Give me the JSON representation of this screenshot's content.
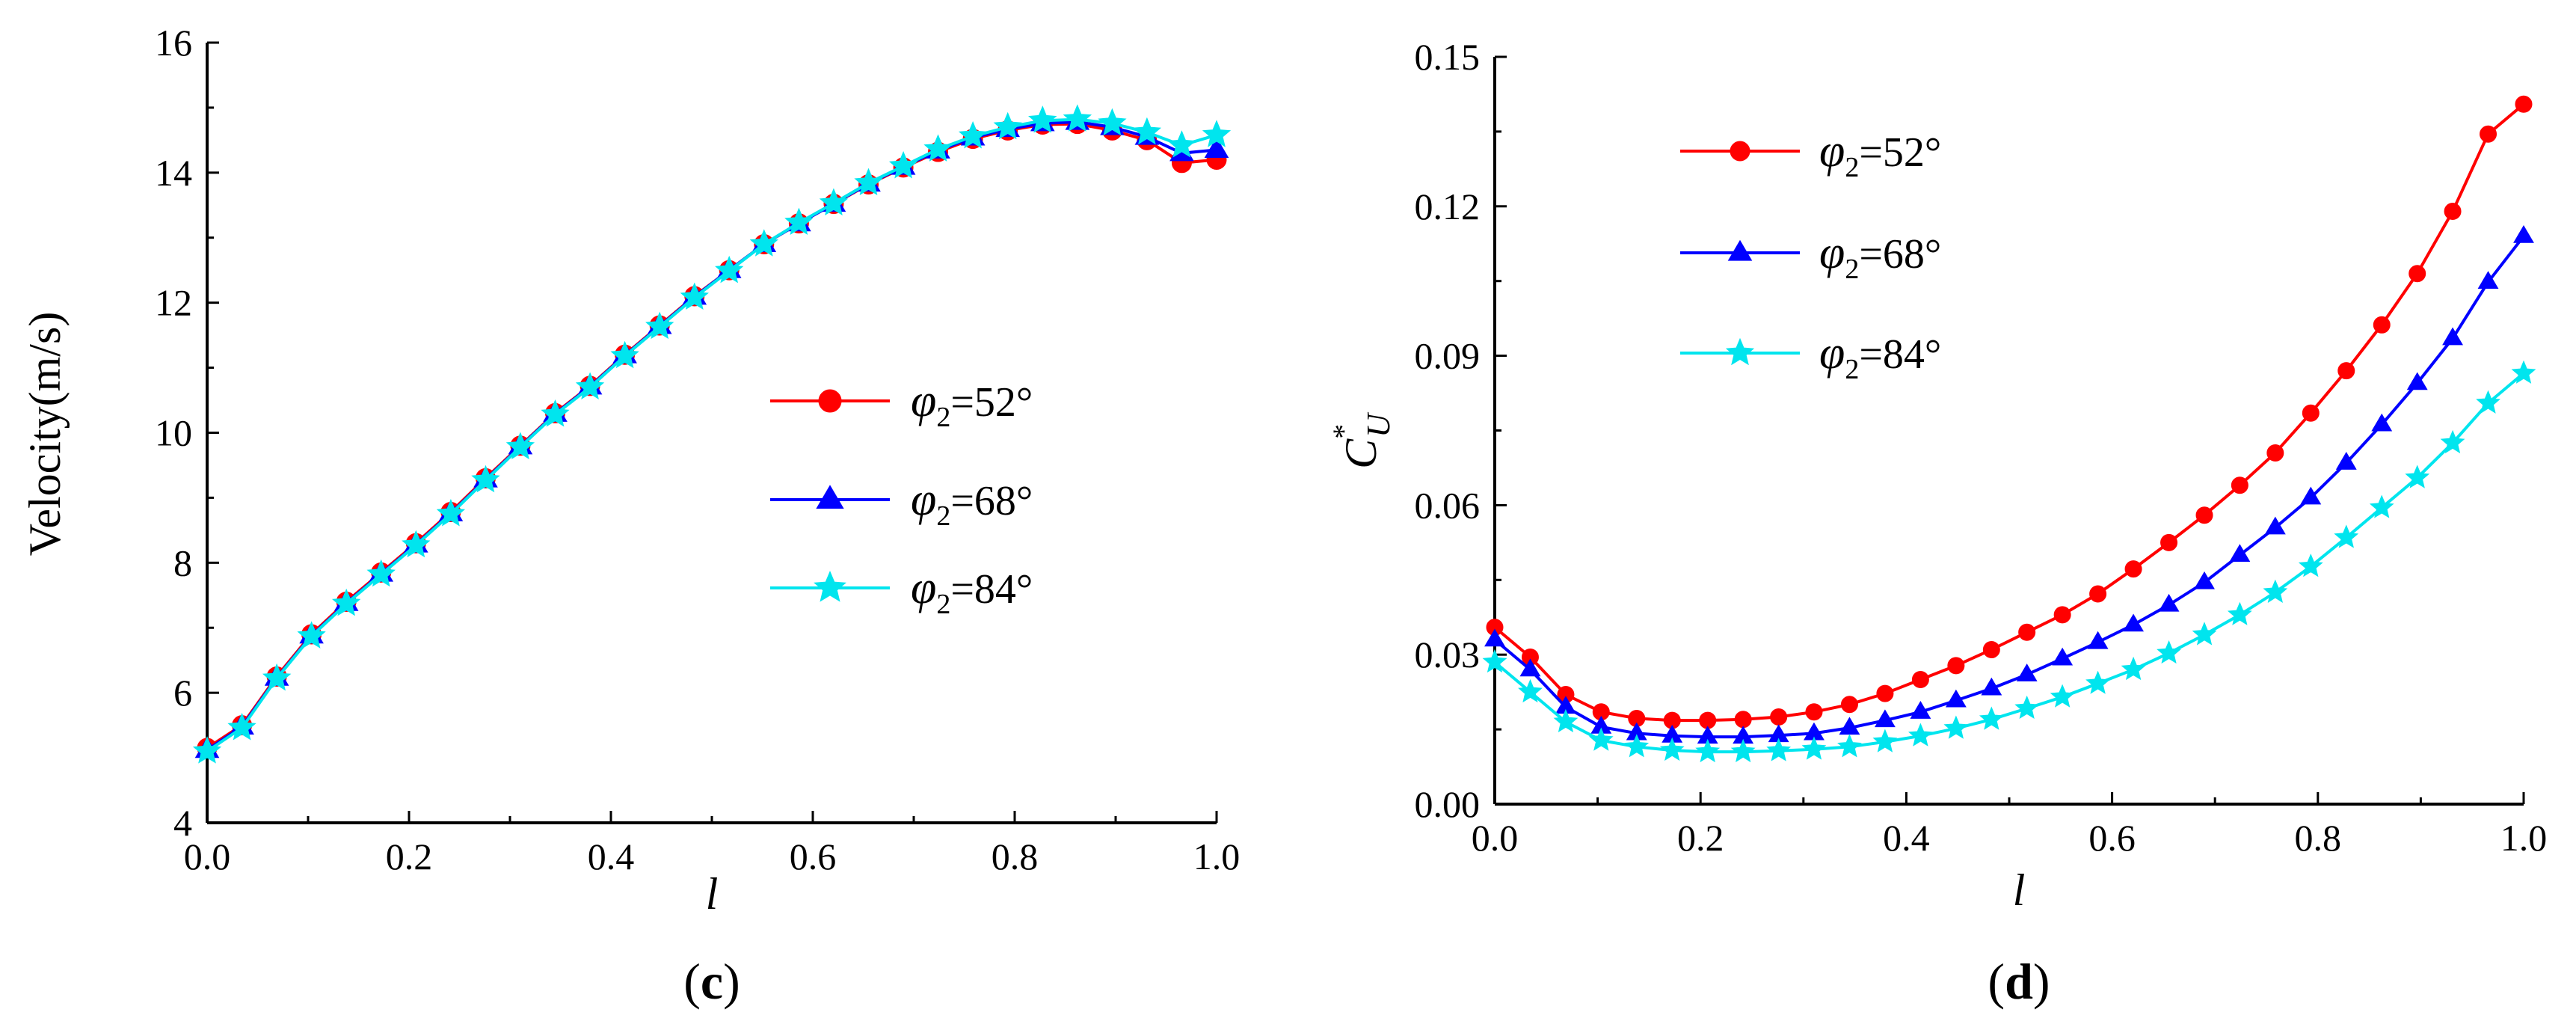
{
  "charts": [
    {
      "id": "c",
      "panel_label": {
        "open": "(",
        "letter": "c",
        "close": ")"
      },
      "chart_data": {
        "type": "line",
        "title": "",
        "xlabel": "l",
        "ylabel": "Velocity(m/s)",
        "xlim": [
          0.0,
          1.0
        ],
        "ylim": [
          4,
          16
        ],
        "xticks": [
          0.0,
          0.2,
          0.4,
          0.6,
          0.8,
          1.0
        ],
        "xtick_labels": [
          "0.0",
          "0.2",
          "0.4",
          "0.6",
          "0.8",
          "1.0"
        ],
        "yticks": [
          4,
          6,
          8,
          10,
          12,
          14,
          16
        ],
        "ytick_labels": [
          "4",
          "6",
          "8",
          "10",
          "12",
          "14",
          "16"
        ],
        "grid": false,
        "legend_placement": "center-right",
        "x": [
          0.0,
          0.0345,
          0.069,
          0.1034,
          0.1379,
          0.1724,
          0.2069,
          0.2414,
          0.2759,
          0.3103,
          0.3448,
          0.3793,
          0.4138,
          0.4483,
          0.4828,
          0.5172,
          0.5517,
          0.5862,
          0.6207,
          0.6552,
          0.6897,
          0.7241,
          0.7586,
          0.7931,
          0.8276,
          0.8621,
          0.8966,
          0.931,
          0.9655,
          1.0
        ],
        "series": [
          {
            "label_sym": "φ",
            "label_sub": "2",
            "label_rest": "=52°",
            "color": "#ff0000",
            "marker": "circle",
            "values": [
              5.15,
              5.5,
              6.25,
              6.9,
              7.4,
              7.85,
              8.3,
              8.78,
              9.3,
              9.8,
              10.3,
              10.72,
              11.2,
              11.65,
              12.1,
              12.5,
              12.9,
              13.22,
              13.52,
              13.82,
              14.08,
              14.32,
              14.52,
              14.65,
              14.74,
              14.75,
              14.65,
              14.5,
              14.15,
              14.2
            ]
          },
          {
            "label_sym": "φ",
            "label_sub": "2",
            "label_rest": "=68°",
            "color": "#0000ff",
            "marker": "triangle",
            "values": [
              5.12,
              5.48,
              6.23,
              6.88,
              7.38,
              7.83,
              8.28,
              8.76,
              9.28,
              9.79,
              10.29,
              10.71,
              11.19,
              11.64,
              12.09,
              12.5,
              12.9,
              13.22,
              13.52,
              13.83,
              14.09,
              14.34,
              14.54,
              14.67,
              14.76,
              14.78,
              14.7,
              14.55,
              14.3,
              14.35
            ]
          },
          {
            "label_sym": "φ",
            "label_sub": "2",
            "label_rest": "=84°",
            "color": "#00e5ee",
            "marker": "star",
            "values": [
              5.1,
              5.46,
              6.22,
              6.87,
              7.37,
              7.82,
              8.27,
              8.75,
              9.27,
              9.78,
              10.28,
              10.7,
              11.18,
              11.63,
              12.08,
              12.49,
              12.9,
              13.23,
              13.53,
              13.84,
              14.1,
              14.36,
              14.56,
              14.7,
              14.8,
              14.82,
              14.76,
              14.62,
              14.42,
              14.58
            ]
          }
        ]
      }
    },
    {
      "id": "d",
      "panel_label": {
        "open": "(",
        "letter": "d",
        "close": ")"
      },
      "chart_data": {
        "type": "line",
        "title": "",
        "xlabel": "l",
        "ylabel_main": "C",
        "ylabel_sup": "*",
        "ylabel_sub": "U",
        "xlim": [
          0.0,
          1.0
        ],
        "ylim": [
          0.0,
          0.15
        ],
        "xticks": [
          0.0,
          0.2,
          0.4,
          0.6,
          0.8,
          1.0
        ],
        "xtick_labels": [
          "0.0",
          "0.2",
          "0.4",
          "0.6",
          "0.8",
          "1.0"
        ],
        "yticks": [
          0.0,
          0.03,
          0.06,
          0.09,
          0.12,
          0.15
        ],
        "ytick_labels": [
          "0.00",
          "0.03",
          "0.06",
          "0.09",
          "0.12",
          "0.15"
        ],
        "grid": false,
        "legend_placement": "top-left",
        "x": [
          0.0,
          0.0345,
          0.069,
          0.1034,
          0.1379,
          0.1724,
          0.2069,
          0.2414,
          0.2759,
          0.3103,
          0.3448,
          0.3793,
          0.4138,
          0.4483,
          0.4828,
          0.5172,
          0.5517,
          0.5862,
          0.6207,
          0.6552,
          0.6897,
          0.7241,
          0.7586,
          0.7931,
          0.8276,
          0.8621,
          0.8966,
          0.931,
          0.9655,
          1.0
        ],
        "series": [
          {
            "label_sym": "φ",
            "label_sub": "2",
            "label_rest": "=52°",
            "color": "#ff0000",
            "marker": "circle",
            "values": [
              0.0355,
              0.0295,
              0.022,
              0.0185,
              0.0172,
              0.0168,
              0.0168,
              0.017,
              0.0175,
              0.0185,
              0.02,
              0.0222,
              0.025,
              0.0278,
              0.031,
              0.0345,
              0.038,
              0.0422,
              0.0472,
              0.0525,
              0.058,
              0.064,
              0.0705,
              0.0785,
              0.087,
              0.0962,
              0.1065,
              0.119,
              0.1345,
              0.1405
            ]
          },
          {
            "label_sym": "φ",
            "label_sub": "2",
            "label_rest": "=68°",
            "color": "#0000ff",
            "marker": "triangle",
            "values": [
              0.033,
              0.027,
              0.0195,
              0.0155,
              0.0142,
              0.0137,
              0.0135,
              0.0135,
              0.0138,
              0.0142,
              0.0153,
              0.0168,
              0.0185,
              0.0208,
              0.0232,
              0.026,
              0.0292,
              0.0325,
              0.036,
              0.04,
              0.0445,
              0.05,
              0.0555,
              0.0615,
              0.0685,
              0.0762,
              0.0845,
              0.0935,
              0.1048,
              0.114
            ]
          },
          {
            "label_sym": "φ",
            "label_sub": "2",
            "label_rest": "=84°",
            "color": "#00e5ee",
            "marker": "star",
            "values": [
              0.0285,
              0.0225,
              0.0165,
              0.0128,
              0.0115,
              0.0108,
              0.0105,
              0.0105,
              0.0107,
              0.011,
              0.0115,
              0.0125,
              0.0137,
              0.0152,
              0.017,
              0.0192,
              0.0215,
              0.0242,
              0.027,
              0.0303,
              0.034,
              0.038,
              0.0425,
              0.0477,
              0.0535,
              0.0595,
              0.0655,
              0.0725,
              0.0805,
              0.0865
            ]
          }
        ]
      }
    }
  ]
}
